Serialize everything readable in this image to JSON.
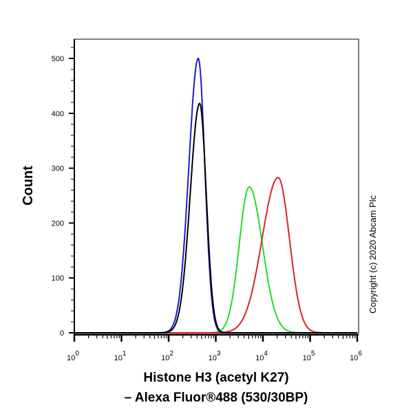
{
  "chart_data": {
    "type": "line",
    "title": "",
    "xlabel_line1": "Histone H3 (acetyl K27)",
    "xlabel_line2": "– Alexa Fluor®488 (530/30BP)",
    "ylabel": "Count",
    "x_scale": "log",
    "xlim": [
      1,
      1000000
    ],
    "ylim": [
      0,
      540
    ],
    "x_ticks": [
      {
        "base": "10",
        "exp": "0"
      },
      {
        "base": "10",
        "exp": "1"
      },
      {
        "base": "10",
        "exp": "2"
      },
      {
        "base": "10",
        "exp": "3"
      },
      {
        "base": "10",
        "exp": "4"
      },
      {
        "base": "10",
        "exp": "5"
      },
      {
        "base": "10",
        "exp": "6"
      }
    ],
    "y_ticks": [
      "0",
      "100",
      "200",
      "300",
      "400",
      "500"
    ],
    "y_tick_values": [
      0,
      100,
      200,
      300,
      400,
      500
    ],
    "grid": false,
    "legend": "none",
    "series": [
      {
        "color": "#1a1ad0",
        "peak_x": 425,
        "peak_count": 500,
        "spread_left_decades": 0.2,
        "spread_right_decades": 0.14
      },
      {
        "color": "#000000",
        "peak_x": 455,
        "peak_count": 418,
        "spread_left_decades": 0.2,
        "spread_right_decades": 0.14
      },
      {
        "color": "#22dd22",
        "peak_x": 5100,
        "peak_count": 266,
        "spread_left_decades": 0.21,
        "spread_right_decades": 0.28
      },
      {
        "color": "#dd2222",
        "peak_x": 21000,
        "peak_count": 283,
        "spread_left_decades": 0.34,
        "spread_right_decades": 0.24
      }
    ],
    "annotation": "Copyright (c) 2020 Abcam Plc"
  }
}
